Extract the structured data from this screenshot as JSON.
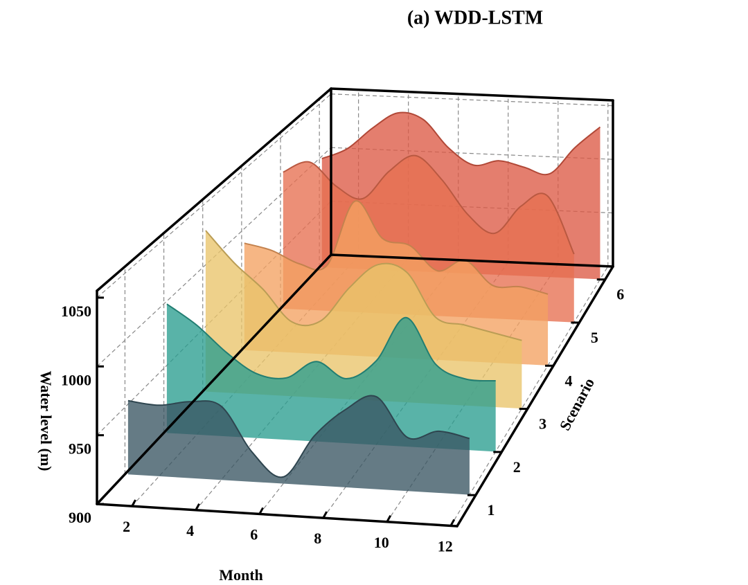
{
  "chart_data": {
    "type": "ridgeline3d",
    "title": "(a) WDD-LSTM",
    "x_label": "Month",
    "y_label": "Scenario",
    "z_label": "Water level (m)",
    "x": [
      1,
      2,
      3,
      4,
      5,
      6,
      7,
      8,
      9,
      10,
      11,
      12
    ],
    "xlim": [
      0.9,
      12.2
    ],
    "xticks": [
      2,
      4,
      6,
      8,
      10,
      12
    ],
    "ylim": [
      0.28,
      6.3
    ],
    "zlim": [
      900,
      1055
    ],
    "zticks": [
      900,
      950,
      1000,
      1050
    ],
    "grid": true,
    "series": [
      {
        "name": "1",
        "color": "#3a5663",
        "values": [
          955,
          953,
          957,
          955,
          922,
          905,
          937,
          958,
          969,
          940,
          946,
          942
        ]
      },
      {
        "name": "2",
        "color": "#2a9d8f",
        "values": [
          1000,
          985,
          965,
          950,
          948,
          962,
          950,
          965,
          1000,
          965,
          955,
          955
        ]
      },
      {
        "name": "3",
        "color": "#e9c46a",
        "values": [
          1030,
          1005,
          985,
          960,
          962,
          990,
          1010,
          1005,
          970,
          965,
          960,
          955
        ]
      },
      {
        "name": "4",
        "color": "#f4a261",
        "values": [
          990,
          985,
          975,
          975,
          1030,
          1000,
          995,
          975,
          985,
          965,
          965,
          960
        ]
      },
      {
        "name": "5",
        "color": "#e76f51",
        "values": [
          1020,
          1030,
          1010,
          1000,
          1025,
          1040,
          1020,
          990,
          975,
          1000,
          1010,
          960
        ]
      },
      {
        "name": "6",
        "color": "#dd5a45",
        "values": [
          1000,
          1010,
          1030,
          1045,
          1040,
          1015,
          1000,
          1005,
          1000,
          995,
          1020,
          1040
        ]
      }
    ]
  }
}
